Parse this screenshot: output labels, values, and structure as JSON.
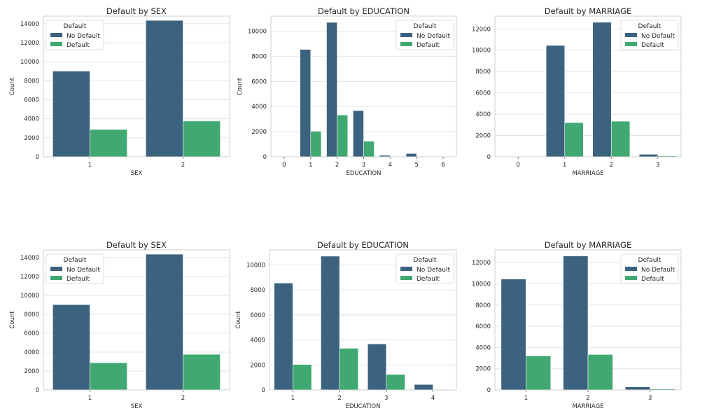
{
  "colors": {
    "no_default": "#3b627f",
    "default": "#40a972",
    "grid": "#e4e4e4",
    "frame": "#cfcfcf"
  },
  "chart_data": [
    {
      "type": "bar",
      "title": "Default by SEX",
      "xlabel": "SEX",
      "ylabel": "Count",
      "categories": [
        "1",
        "2"
      ],
      "ylim": [
        0,
        14800
      ],
      "yticks": [
        0,
        2000,
        4000,
        6000,
        8000,
        10000,
        12000,
        14000
      ],
      "legend": {
        "title": "Default",
        "position": "top-left"
      },
      "series": [
        {
          "name": "No Default",
          "values": [
            9015,
            14349
          ]
        },
        {
          "name": "Default",
          "values": [
            2873,
            3763
          ]
        }
      ]
    },
    {
      "type": "bar",
      "title": "Default by EDUCATION",
      "xlabel": "EDUCATION",
      "ylabel": "Count",
      "categories": [
        "0",
        "1",
        "2",
        "3",
        "4",
        "5",
        "6"
      ],
      "ylim": [
        0,
        11200
      ],
      "yticks": [
        0,
        2000,
        4000,
        6000,
        8000,
        10000
      ],
      "legend": {
        "title": "Default",
        "position": "top-right"
      },
      "series": [
        {
          "name": "No Default",
          "values": [
            14,
            8549,
            10700,
            3680,
            116,
            262,
            43
          ]
        },
        {
          "name": "Default",
          "values": [
            0,
            2036,
            3330,
            1237,
            7,
            18,
            8
          ]
        }
      ]
    },
    {
      "type": "bar",
      "title": "Default by MARRIAGE",
      "xlabel": "MARRIAGE",
      "ylabel": "Count",
      "categories": [
        "0",
        "1",
        "2",
        "3"
      ],
      "ylim": [
        0,
        13200
      ],
      "yticks": [
        0,
        2000,
        4000,
        6000,
        8000,
        10000,
        12000
      ],
      "legend": {
        "title": "Default",
        "position": "top-right"
      },
      "series": [
        {
          "name": "No Default",
          "values": [
            49,
            10453,
            12623,
            239
          ]
        },
        {
          "name": "Default",
          "values": [
            5,
            3206,
            3341,
            84
          ]
        }
      ]
    },
    {
      "type": "bar",
      "title": "Default by SEX",
      "xlabel": "SEX",
      "ylabel": "Count",
      "categories": [
        "1",
        "2"
      ],
      "ylim": [
        0,
        14800
      ],
      "yticks": [
        0,
        2000,
        4000,
        6000,
        8000,
        10000,
        12000,
        14000
      ],
      "legend": {
        "title": "Default",
        "position": "top-left"
      },
      "series": [
        {
          "name": "No Default",
          "values": [
            9015,
            14349
          ]
        },
        {
          "name": "Default",
          "values": [
            2873,
            3763
          ]
        }
      ]
    },
    {
      "type": "bar",
      "title": "Default by EDUCATION",
      "xlabel": "EDUCATION",
      "ylabel": "Count",
      "categories": [
        "1",
        "2",
        "3",
        "4"
      ],
      "ylim": [
        0,
        11200
      ],
      "yticks": [
        0,
        2000,
        4000,
        6000,
        8000,
        10000
      ],
      "legend": {
        "title": "Default",
        "position": "top-right"
      },
      "series": [
        {
          "name": "No Default",
          "values": [
            8549,
            10700,
            3680,
            435
          ]
        },
        {
          "name": "Default",
          "values": [
            2036,
            3330,
            1237,
            33
          ]
        }
      ]
    },
    {
      "type": "bar",
      "title": "Default by MARRIAGE",
      "xlabel": "MARRIAGE",
      "ylabel": "Count",
      "categories": [
        "1",
        "2",
        "3"
      ],
      "ylim": [
        0,
        13200
      ],
      "yticks": [
        0,
        2000,
        4000,
        6000,
        8000,
        10000,
        12000
      ],
      "legend": {
        "title": "Default",
        "position": "top-right"
      },
      "series": [
        {
          "name": "No Default",
          "values": [
            10453,
            12623,
            288
          ]
        },
        {
          "name": "Default",
          "values": [
            3206,
            3341,
            89
          ]
        }
      ]
    }
  ]
}
